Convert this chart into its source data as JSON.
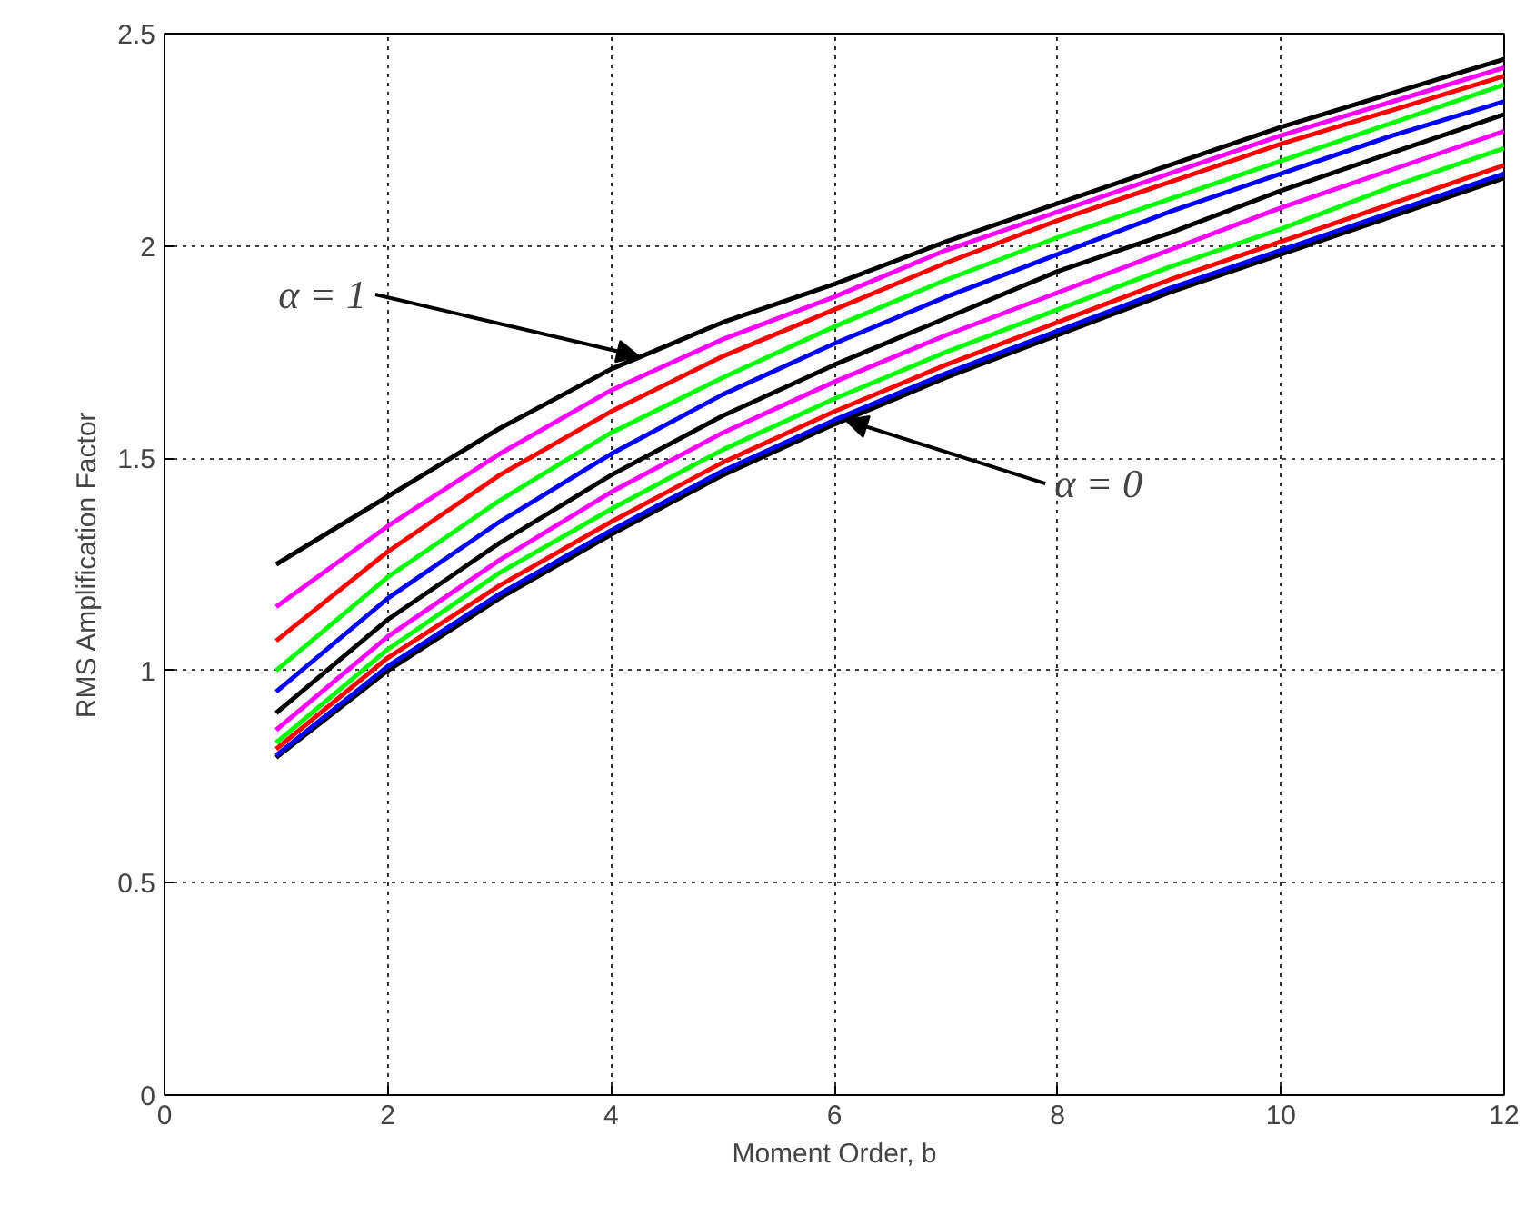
{
  "chart_data": {
    "type": "line",
    "xlabel": "Moment Order, b",
    "ylabel": "RMS Amplification Factor",
    "x": [
      1,
      2,
      3,
      4,
      5,
      6,
      7,
      8,
      9,
      10,
      11,
      12
    ],
    "series": [
      {
        "color": "#000000",
        "values": [
          0.795,
          1.0,
          1.17,
          1.32,
          1.46,
          1.58,
          1.69,
          1.79,
          1.89,
          1.98,
          2.07,
          2.16
        ]
      },
      {
        "color": "#0000ff",
        "values": [
          0.8,
          1.01,
          1.18,
          1.33,
          1.47,
          1.59,
          1.7,
          1.8,
          1.9,
          1.99,
          2.08,
          2.17
        ]
      },
      {
        "color": "#ff0000",
        "values": [
          0.815,
          1.03,
          1.2,
          1.35,
          1.49,
          1.61,
          1.72,
          1.82,
          1.92,
          2.01,
          2.1,
          2.19
        ]
      },
      {
        "color": "#00ff00",
        "values": [
          0.83,
          1.05,
          1.23,
          1.38,
          1.52,
          1.64,
          1.75,
          1.85,
          1.95,
          2.04,
          2.14,
          2.23
        ]
      },
      {
        "color": "#ff00ff",
        "values": [
          0.86,
          1.08,
          1.26,
          1.42,
          1.56,
          1.68,
          1.79,
          1.89,
          1.99,
          2.09,
          2.18,
          2.27
        ]
      },
      {
        "color": "#000000",
        "values": [
          0.9,
          1.12,
          1.3,
          1.46,
          1.6,
          1.72,
          1.83,
          1.94,
          2.03,
          2.13,
          2.22,
          2.31
        ]
      },
      {
        "color": "#0000ff",
        "values": [
          0.95,
          1.17,
          1.35,
          1.51,
          1.65,
          1.77,
          1.88,
          1.98,
          2.08,
          2.17,
          2.26,
          2.34
        ]
      },
      {
        "color": "#00ff00",
        "values": [
          1.0,
          1.22,
          1.4,
          1.56,
          1.69,
          1.81,
          1.92,
          2.02,
          2.11,
          2.2,
          2.29,
          2.38
        ]
      },
      {
        "color": "#ff0000",
        "values": [
          1.07,
          1.28,
          1.46,
          1.61,
          1.74,
          1.85,
          1.96,
          2.06,
          2.15,
          2.24,
          2.32,
          2.4
        ]
      },
      {
        "color": "#ff00ff",
        "values": [
          1.15,
          1.34,
          1.51,
          1.66,
          1.78,
          1.88,
          1.99,
          2.08,
          2.17,
          2.26,
          2.34,
          2.42
        ]
      },
      {
        "color": "#000000",
        "values": [
          1.25,
          1.41,
          1.57,
          1.71,
          1.82,
          1.91,
          2.01,
          2.1,
          2.19,
          2.28,
          2.36,
          2.44
        ]
      }
    ],
    "xlim": [
      0,
      12
    ],
    "xticks": [
      0,
      2,
      4,
      6,
      8,
      10,
      12
    ],
    "ylim": [
      0,
      2.5
    ],
    "yticks": [
      0,
      0.5,
      1,
      1.5,
      2,
      2.5
    ],
    "grid": true,
    "marker": "none",
    "line_style": "solid",
    "annotations": [
      {
        "text": "α = 1",
        "x": 4.25,
        "y": 1.74
      },
      {
        "text": "α = 0",
        "x": 6.1,
        "y": 1.59
      }
    ]
  }
}
